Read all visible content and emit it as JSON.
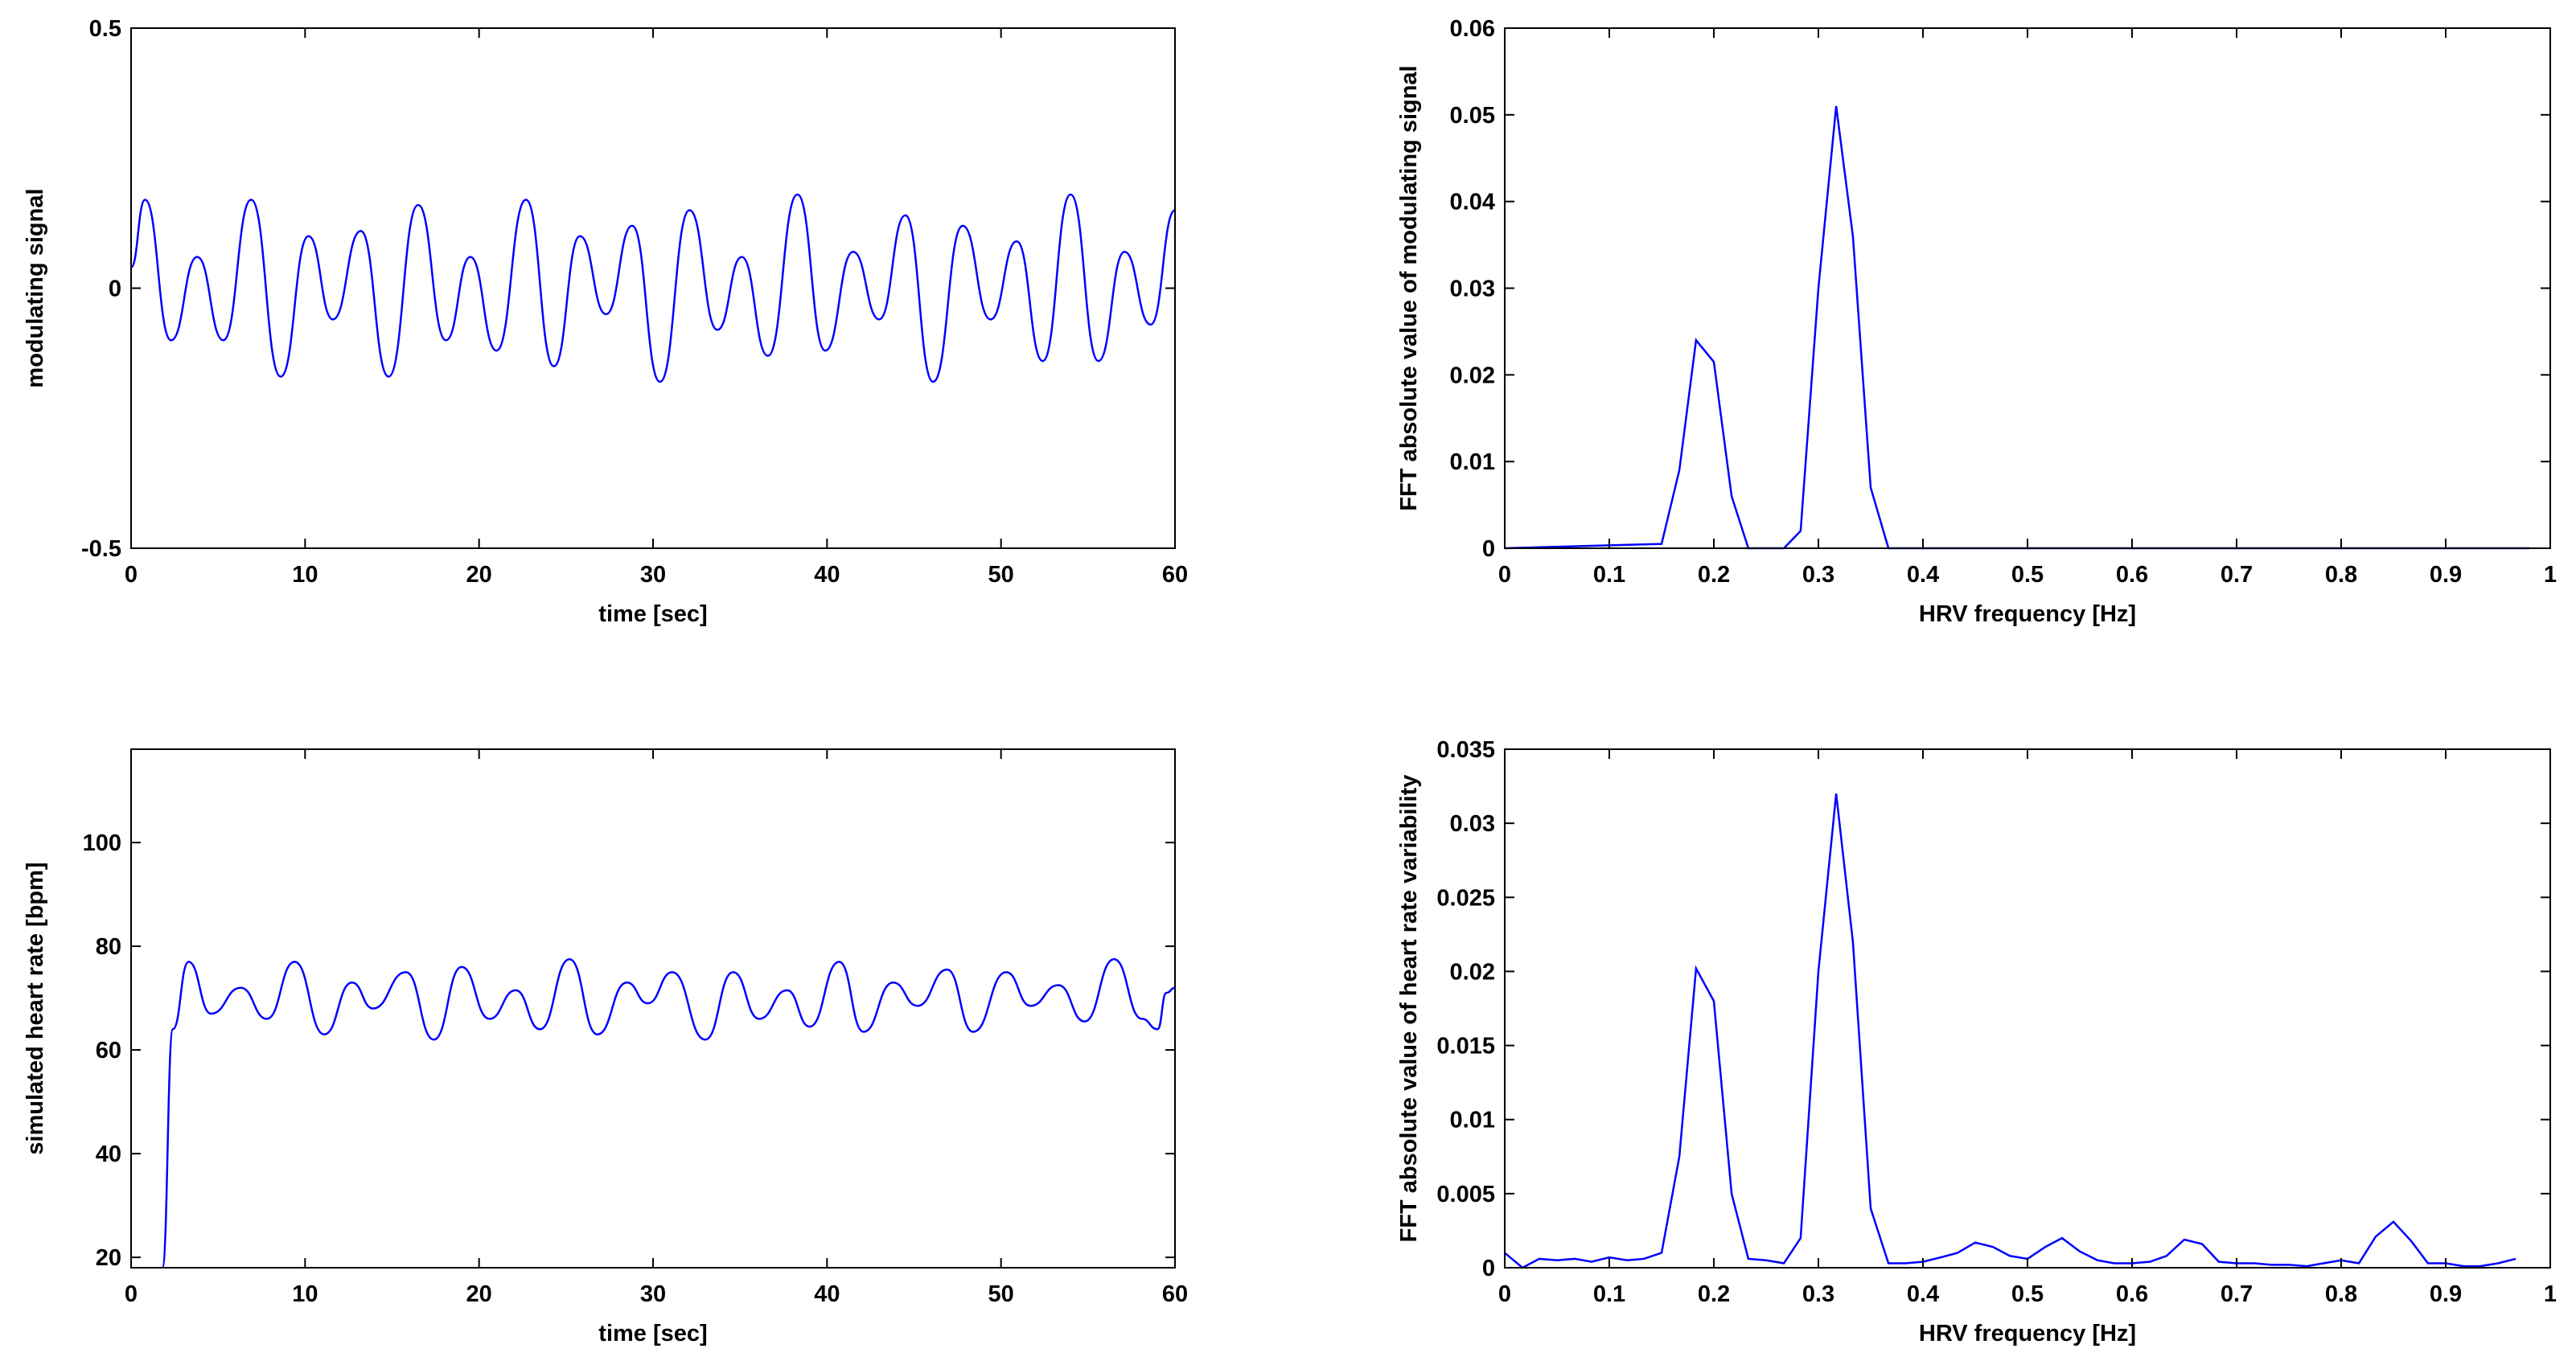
{
  "chart_data": [
    {
      "type": "line",
      "interpolation": "smooth",
      "xlabel": "time [sec]",
      "ylabel": "modulating signal",
      "xlim": [
        0,
        60
      ],
      "ylim": [
        -0.5,
        0.5
      ],
      "xticks": [
        0,
        10,
        20,
        30,
        40,
        50,
        60
      ],
      "yticks": [
        -0.5,
        0,
        0.5
      ],
      "series": [
        {
          "color": "#0000ff",
          "x": [
            0,
            0.8,
            2.3,
            3.8,
            5.3,
            6.9,
            8.6,
            10.2,
            11.6,
            13.2,
            14.8,
            16.5,
            18.1,
            19.5,
            21,
            22.7,
            24.3,
            25.8,
            27.3,
            28.8,
            30.4,
            32.1,
            33.7,
            35.1,
            36.6,
            38.3,
            39.9,
            41.5,
            43,
            44.5,
            46.1,
            47.8,
            49.4,
            50.9,
            52.4,
            54,
            55.6,
            57.1,
            58.6,
            60
          ],
          "values": [
            0.04,
            0.17,
            -0.1,
            0.06,
            -0.1,
            0.17,
            -0.17,
            0.1,
            -0.06,
            0.11,
            -0.17,
            0.16,
            -0.1,
            0.06,
            -0.12,
            0.17,
            -0.15,
            0.1,
            -0.05,
            0.12,
            -0.18,
            0.15,
            -0.08,
            0.06,
            -0.13,
            0.18,
            -0.12,
            0.07,
            -0.06,
            0.14,
            -0.18,
            0.12,
            -0.06,
            0.09,
            -0.14,
            0.18,
            -0.14,
            0.07,
            -0.07,
            0.15
          ]
        }
      ]
    },
    {
      "type": "line",
      "interpolation": "linear",
      "xlabel": "HRV frequency [Hz]",
      "ylabel": "FFT absolute value of modulating signal",
      "xlim": [
        0,
        1
      ],
      "ylim": [
        0,
        0.06
      ],
      "xticks": [
        0,
        0.1,
        0.2,
        0.3,
        0.4,
        0.5,
        0.6,
        0.7,
        0.8,
        0.9,
        1
      ],
      "yticks": [
        0,
        0.01,
        0.02,
        0.03,
        0.04,
        0.05,
        0.06
      ],
      "series": [
        {
          "color": "#0000ff",
          "x": [
            0,
            0.15,
            0.167,
            0.183,
            0.2,
            0.217,
            0.233,
            0.267,
            0.283,
            0.3,
            0.317,
            0.333,
            0.35,
            0.367,
            0.98
          ],
          "values": [
            0,
            0.0005,
            0.009,
            0.024,
            0.0215,
            0.006,
            0,
            0,
            0.002,
            0.03,
            0.051,
            0.036,
            0.007,
            0,
            0
          ]
        }
      ]
    },
    {
      "type": "line",
      "interpolation": "smooth",
      "xlabel": "time [sec]",
      "ylabel": "simulated heart rate [bpm]",
      "xlim": [
        0,
        60
      ],
      "ylim": [
        18,
        118
      ],
      "xticks": [
        0,
        10,
        20,
        30,
        40,
        50,
        60
      ],
      "yticks": [
        20,
        40,
        60,
        80,
        100
      ],
      "series": [
        {
          "color": "#0000ff",
          "x": [
            1.8,
            2.4,
            3.3,
            4.6,
            6.3,
            7.8,
            9.4,
            11.1,
            12.7,
            13.9,
            15.8,
            17.4,
            19,
            20.6,
            22.1,
            23.5,
            25.2,
            26.8,
            28.5,
            29.7,
            31.1,
            33,
            34.6,
            36.1,
            37.7,
            39,
            40.7,
            42.1,
            43.8,
            45.2,
            46.9,
            48.4,
            50.3,
            51.7,
            53.3,
            54.8,
            56.5,
            58.1,
            59,
            59.5,
            60
          ],
          "values": [
            18,
            64,
            77,
            67,
            72,
            66,
            77,
            63,
            73,
            68,
            75,
            62,
            76,
            66,
            71.5,
            64,
            77.5,
            63,
            73,
            69,
            75,
            62,
            75,
            66,
            71.5,
            64.5,
            77,
            63.5,
            73,
            68.5,
            75.5,
            63.5,
            75,
            68.5,
            72.5,
            65.5,
            77.5,
            66,
            64,
            71,
            72
          ]
        }
      ]
    },
    {
      "type": "line",
      "interpolation": "linear",
      "xlabel": "HRV frequency [Hz]",
      "ylabel": "FFT absolute value of heart rate variability",
      "xlim": [
        0,
        1
      ],
      "ylim": [
        0,
        0.035
      ],
      "xticks": [
        0,
        0.1,
        0.2,
        0.3,
        0.4,
        0.5,
        0.6,
        0.7,
        0.8,
        0.9,
        1
      ],
      "yticks": [
        0,
        0.005,
        0.01,
        0.015,
        0.02,
        0.025,
        0.03,
        0.035
      ],
      "series": [
        {
          "color": "#0000ff",
          "x": [
            0,
            0.017,
            0.033,
            0.05,
            0.067,
            0.083,
            0.1,
            0.117,
            0.133,
            0.15,
            0.167,
            0.183,
            0.2,
            0.217,
            0.233,
            0.25,
            0.267,
            0.283,
            0.3,
            0.317,
            0.333,
            0.35,
            0.367,
            0.383,
            0.4,
            0.417,
            0.433,
            0.45,
            0.467,
            0.483,
            0.5,
            0.517,
            0.533,
            0.55,
            0.567,
            0.583,
            0.6,
            0.617,
            0.633,
            0.65,
            0.667,
            0.683,
            0.7,
            0.717,
            0.733,
            0.75,
            0.767,
            0.783,
            0.8,
            0.817,
            0.833,
            0.85,
            0.867,
            0.883,
            0.9,
            0.917,
            0.933,
            0.95,
            0.967
          ],
          "values": [
            0.001,
            0,
            0.0006,
            0.0005,
            0.0006,
            0.0004,
            0.0007,
            0.0005,
            0.0006,
            0.001,
            0.0075,
            0.0202,
            0.018,
            0.005,
            0.0006,
            0.0005,
            0.0003,
            0.002,
            0.02,
            0.032,
            0.022,
            0.004,
            0.0003,
            0.0003,
            0.0004,
            0.0007,
            0.001,
            0.0017,
            0.0014,
            0.0008,
            0.0006,
            0.0014,
            0.002,
            0.0011,
            0.0005,
            0.0003,
            0.0003,
            0.0004,
            0.0008,
            0.0019,
            0.0016,
            0.0004,
            0.0003,
            0.0003,
            0.0002,
            0.0002,
            0.0001,
            0.0003,
            0.0005,
            0.0003,
            0.0021,
            0.0031,
            0.0018,
            0.0003,
            0.0003,
            0.0001,
            0.0001,
            0.0003,
            0.0006
          ]
        }
      ]
    }
  ]
}
